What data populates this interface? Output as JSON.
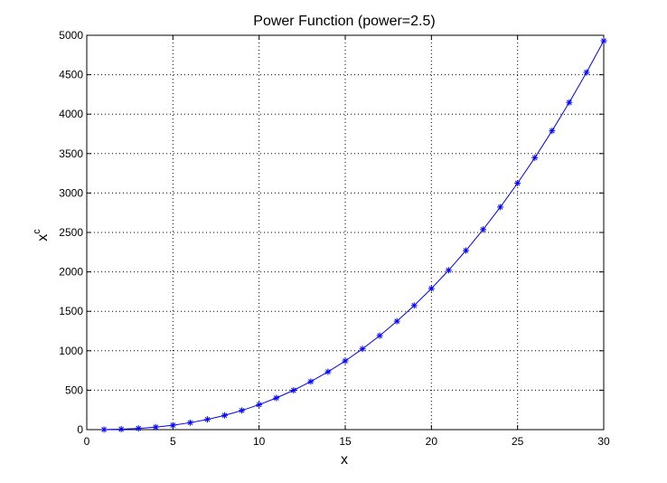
{
  "chart_data": {
    "type": "line",
    "title": "Power Function (power=2.5)",
    "xlabel": "x",
    "ylabel_base": "x",
    "ylabel_superscript": "c",
    "xlim": [
      0,
      30
    ],
    "ylim": [
      0,
      5000
    ],
    "x_ticks": [
      0,
      5,
      10,
      15,
      20,
      25,
      30
    ],
    "y_ticks": [
      0,
      500,
      1000,
      1500,
      2000,
      2500,
      3000,
      3500,
      4000,
      4500,
      5000
    ],
    "x_tick_labels": [
      "0",
      "5",
      "10",
      "15",
      "20",
      "25",
      "30"
    ],
    "y_tick_labels": [
      "0",
      "500",
      "1000",
      "1500",
      "2000",
      "2500",
      "3000",
      "3500",
      "4000",
      "4500",
      "5000"
    ],
    "grid": true,
    "marker": "*",
    "line_color": "#0000ff",
    "series": [
      {
        "x": [
          1,
          2,
          3,
          4,
          5,
          6,
          7,
          8,
          9,
          10,
          11,
          12,
          13,
          14,
          15,
          16,
          17,
          18,
          19,
          20,
          21,
          22,
          23,
          24,
          25,
          26,
          27,
          28,
          29,
          30
        ],
        "values": [
          1,
          5.7,
          15.6,
          32,
          55.9,
          88.2,
          129.6,
          181,
          243,
          316.2,
          401.3,
          498.8,
          609.3,
          733.4,
          871.4,
          1024,
          1191.6,
          1374.6,
          1573.6,
          1788.9,
          2020.9,
          2270.2,
          2537,
          2821.8,
          3125,
          3447,
          3788.1,
          4148.5,
          4528.9,
          4929.5
        ]
      }
    ]
  }
}
